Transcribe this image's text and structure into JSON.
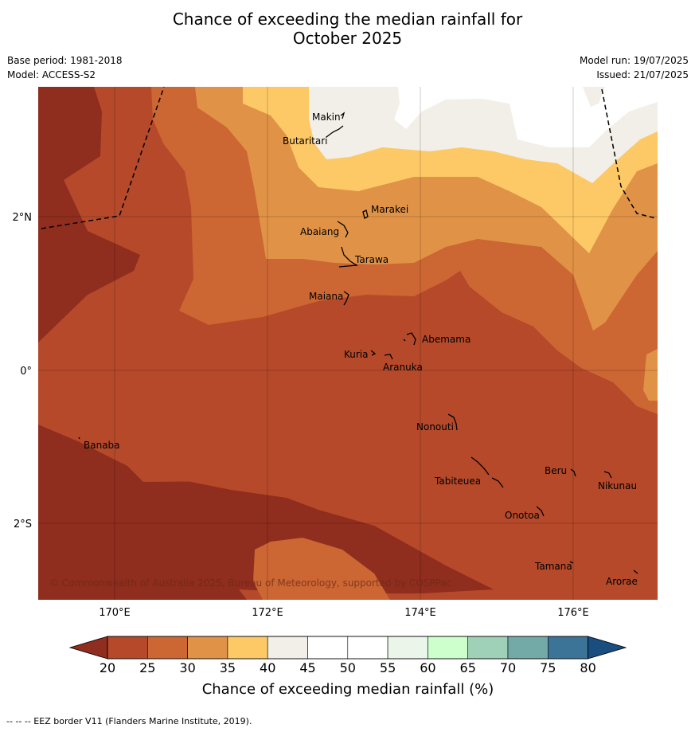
{
  "title": {
    "line1": "Chance of exceeding the median rainfall for",
    "line2": "October 2025"
  },
  "meta": {
    "base_period": "Base period: 1981-2018",
    "model": "Model: ACCESS-S2",
    "model_run": "Model run: 19/07/2025",
    "issued": "Issued: 21/07/2025"
  },
  "axes": {
    "lon_labels": [
      "170°E",
      "172°E",
      "174°E",
      "176°E"
    ],
    "lat_labels": [
      "2°N",
      "0°",
      "2°S"
    ]
  },
  "places": [
    {
      "name": "Makin"
    },
    {
      "name": "Butaritari"
    },
    {
      "name": "Marakei"
    },
    {
      "name": "Abaiang"
    },
    {
      "name": "Tarawa"
    },
    {
      "name": "Maiana"
    },
    {
      "name": "Abemama"
    },
    {
      "name": "Kuria"
    },
    {
      "name": "Aranuka"
    },
    {
      "name": "Nonouti"
    },
    {
      "name": "Banaba"
    },
    {
      "name": "Beru"
    },
    {
      "name": "Nikunau"
    },
    {
      "name": "Tabiteuea"
    },
    {
      "name": "Onotoa"
    },
    {
      "name": "Tamana"
    },
    {
      "name": "Arorae"
    }
  ],
  "copyright": "© Commonwealth of Australia 2025, Bureau of Meteorology, supported by COSPPac",
  "colorbar": {
    "title": "Chance of exceeding median rainfall (%)",
    "ticks": [
      "20",
      "25",
      "30",
      "35",
      "40",
      "45",
      "50",
      "55",
      "60",
      "65",
      "70",
      "75",
      "80"
    ],
    "colors": {
      "lt20": "#8f2d1e",
      "c20_25": "#b5492a",
      "c25_30": "#cc6633",
      "c30_35": "#e09347",
      "c35_40": "#fdc966",
      "c40_45": "#f2eee8",
      "c45_50": "#ffffff",
      "c50_55": "#ffffff",
      "c55_60": "#ebf5ea",
      "c60_65": "#ccffcc",
      "c65_70": "#9fd0b8",
      "c70_75": "#73a9a6",
      "c75_80": "#3c7497",
      "gt80": "#1a4d80"
    }
  },
  "footer": "--  --  -- EEZ border V11 (Flanders Marine Institute, 2019)."
}
